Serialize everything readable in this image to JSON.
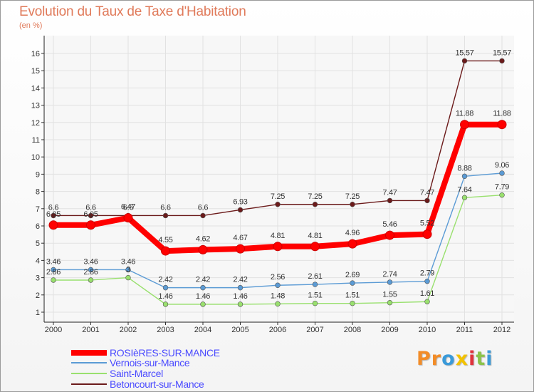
{
  "chart_data": {
    "type": "line",
    "title": "Evolution du Taux de Taxe d'Habitation",
    "unit": "(en %)",
    "categories": [
      "2000",
      "2001",
      "2002",
      "2003",
      "2004",
      "2005",
      "2006",
      "2007",
      "2008",
      "2009",
      "2010",
      "2011",
      "2012"
    ],
    "ylim": [
      1,
      16
    ],
    "yticks": [
      "1",
      "2",
      "3",
      "4",
      "5",
      "6",
      "7",
      "8",
      "9",
      "10",
      "11",
      "12",
      "13",
      "14",
      "15",
      "16"
    ],
    "legend_position": "bottom-left",
    "series": [
      {
        "name": "Betoncourt-sur-Mance",
        "color": "#6b1a1a",
        "values": [
          6.6,
          6.6,
          6.6,
          6.6,
          6.6,
          6.93,
          7.25,
          7.25,
          7.25,
          7.47,
          7.47,
          15.57,
          15.57
        ],
        "labels": [
          "6.6",
          "6.6",
          "6.6",
          "6.6",
          "6.6",
          "6.93",
          "7.25",
          "7.25",
          "7.25",
          "7.47",
          "7.47",
          "15.57",
          "15.57"
        ]
      },
      {
        "name": "Vernois-sur-Mance",
        "color": "#5b9bd5",
        "values": [
          3.46,
          3.46,
          3.46,
          2.42,
          2.42,
          2.42,
          2.56,
          2.61,
          2.69,
          2.74,
          2.79,
          8.88,
          9.06
        ],
        "labels": [
          "3.46",
          "3.46",
          "3.46",
          "2.42",
          "2.42",
          "2.42",
          "2.56",
          "2.61",
          "2.69",
          "2.74",
          "2.79",
          "8.88",
          "9.06"
        ]
      },
      {
        "name": "Saint-Marcel",
        "color": "#99e06e",
        "values": [
          2.86,
          2.86,
          3.0,
          1.46,
          1.46,
          1.46,
          1.48,
          1.51,
          1.51,
          1.55,
          1.61,
          7.64,
          7.79
        ],
        "labels": [
          "2.86",
          "2.86",
          "3",
          "1.46",
          "1.46",
          "1.46",
          "1.48",
          "1.51",
          "1.51",
          "1.55",
          "1.61",
          "7.64",
          "7.79"
        ]
      },
      {
        "name": "ROSIèRES-SUR-MANCE",
        "color": "#ff0000",
        "values": [
          6.05,
          6.05,
          6.47,
          4.55,
          4.62,
          4.67,
          4.81,
          4.81,
          4.96,
          5.46,
          5.52,
          11.88,
          11.88
        ],
        "labels": [
          "6.05",
          "6.05",
          "6.47",
          "4.55",
          "4.62",
          "4.67",
          "4.81",
          "4.81",
          "4.96",
          "5.46",
          "5.52",
          "11.88",
          "11.88"
        ]
      }
    ]
  },
  "brand": {
    "letters": [
      "P",
      "r",
      "o",
      "x",
      "i",
      "t",
      "i"
    ],
    "colors": [
      "#f28c28",
      "#f28c28",
      "#3a9ad9",
      "#f2c200",
      "#e0333c",
      "#8bc34a",
      "#3a9ad9"
    ]
  }
}
